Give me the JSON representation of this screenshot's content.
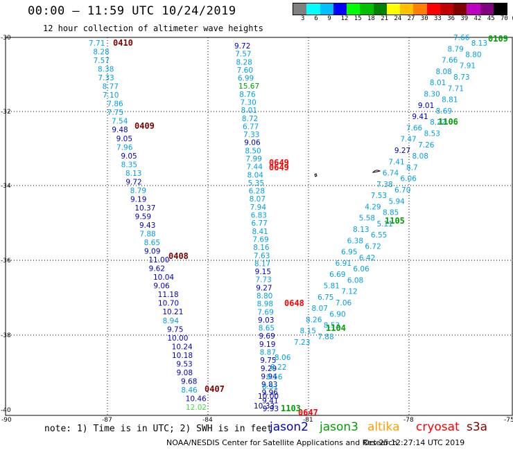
{
  "title": "00:00 – 11:59 UTC 10/24/2019",
  "subtitle": "12 hour collection of altimeter wave heights",
  "color_scale": {
    "labels": [
      "3",
      "6",
      "9",
      "12",
      "15",
      "18",
      "21",
      "24",
      "27",
      "30",
      "33",
      "36",
      "39",
      "42",
      "45",
      "70",
      "(ft)"
    ],
    "colors": [
      "#808080",
      "#00ffff",
      "#00c0ff",
      "#0000ff",
      "#00ff00",
      "#00c000",
      "#008000",
      "#ffff00",
      "#ffc000",
      "#ff8000",
      "#ff0000",
      "#c00000",
      "#800000",
      "#c000c0",
      "#800080",
      "#000000"
    ]
  },
  "axes": {
    "lat_labels": [
      "-30",
      "-32",
      "-34",
      "-36",
      "-38",
      "-40"
    ],
    "lon_labels": [
      "-90",
      "-87",
      "-84",
      "-81",
      "-78",
      "-75"
    ]
  },
  "colors": {
    "lightblue": "#00a0e0",
    "blue": "#0000c0",
    "green": "#00a000",
    "lightgreen": "#40e040",
    "darkred": "#800000",
    "red": "#ff0000"
  },
  "track1": {
    "values": [
      "7.71",
      "8.28",
      "7.57",
      "8.38",
      "7.33",
      "8.77",
      "7.10",
      "7.86",
      "7.75",
      "7.54",
      "9.48",
      "9.05",
      "7.96",
      "9.05",
      "8.35",
      "8.13",
      "9.72",
      "8.79",
      "9.19",
      "10.37",
      "9.59",
      "9.43",
      "7.88",
      "8.65",
      "9.09",
      "11.00",
      "9.62",
      "10.04",
      "9.06",
      "11.18",
      "10.70",
      "10.21",
      "8.94",
      "9.75",
      "10.00",
      "10.24",
      "10.18",
      "9.53",
      "9.08",
      "9.68",
      "8.46",
      "10.46",
      "12.02"
    ],
    "colors": [
      "lb",
      "lb",
      "lb",
      "lb",
      "lb",
      "lb",
      "lb",
      "lb",
      "lb",
      "lb",
      "bl",
      "bl",
      "lb",
      "bl",
      "lb",
      "lb",
      "bl",
      "lb",
      "bl",
      "bl",
      "bl",
      "bl",
      "lb",
      "lb",
      "bl",
      "bl",
      "bl",
      "bl",
      "bl",
      "bl",
      "bl",
      "bl",
      "lb",
      "bl",
      "bl",
      "bl",
      "bl",
      "bl",
      "bl",
      "bl",
      "lb",
      "bl",
      "lg"
    ]
  },
  "track2": {
    "values": [
      "9.72",
      "7.57",
      "8.28",
      "7.60",
      "6.99",
      "15.67",
      "8.76",
      "7.30",
      "8.01",
      "8.72",
      "6.77",
      "7.33",
      "9.06",
      "8.50",
      "7.99",
      "7.44",
      "8.04",
      "5.35",
      "6.28",
      "8.07",
      "7.94",
      "6.83",
      "6.77",
      "8.41",
      "7.69",
      "8.16",
      "7.63",
      "8.17",
      "9.15",
      "7.73",
      "9.27",
      "8.80",
      "8.98",
      "7.69",
      "9.03",
      "8.65",
      "9.69",
      "9.19",
      "8.87",
      "9.75",
      "9.29",
      "9.94",
      "9.83",
      "9.96",
      "9.41",
      "9.93"
    ],
    "colors": [
      "bl",
      "lb",
      "lb",
      "lb",
      "lb",
      "gr",
      "lb",
      "lb",
      "lb",
      "lb",
      "lb",
      "lb",
      "bl",
      "lb",
      "lb",
      "lb",
      "lb",
      "lb",
      "lb",
      "lb",
      "lb",
      "lb",
      "lb",
      "lb",
      "lb",
      "lb",
      "lb",
      "lb",
      "bl",
      "lb",
      "bl",
      "lb",
      "lb",
      "lb",
      "bl",
      "lb",
      "bl",
      "bl",
      "lb",
      "bl",
      "bl",
      "bl",
      "bl",
      "bl",
      "bl",
      "bl"
    ]
  },
  "track2b": {
    "values": [
      "8.06",
      "8.22",
      "9.56",
      "8.51",
      "10.00",
      "10.33"
    ],
    "colors": [
      "lb",
      "lb",
      "lb",
      "lb",
      "bl",
      "bl"
    ]
  },
  "track3": {
    "values": [
      "7.66",
      "8.13",
      "8.79",
      "8.80",
      "7.66",
      "7.91",
      "8.08",
      "8.73",
      "8.01",
      "7.71",
      "8.30",
      "8.81",
      "9.01",
      "8.69",
      "9.41",
      "8.22",
      "7.66",
      "8.53",
      "7.47",
      "7.26",
      "9.27",
      "8.08",
      "7.41",
      "8.7",
      "6.74",
      "6.06",
      "7.38",
      "6.70",
      "7.53",
      "5.94",
      "4.29",
      "8.85",
      "5.58",
      "5.11",
      "8.13",
      "6.55",
      "6.38",
      "6.72",
      "6.95",
      "6.42",
      "6.91",
      "6.06",
      "6.69",
      "6.08",
      "5.81",
      "7.12",
      "6.75",
      "7.06",
      "8.07",
      "6.90",
      "8.26",
      "8.53",
      "8.15",
      "7.88",
      "7.23"
    ],
    "colors": [
      "lb",
      "lb",
      "lb",
      "lb",
      "lb",
      "lb",
      "lb",
      "lb",
      "lb",
      "lb",
      "lb",
      "lb",
      "bl",
      "lb",
      "bl",
      "lb",
      "lb",
      "lb",
      "lb",
      "lb",
      "bl",
      "lb",
      "lb",
      "lb",
      "lb",
      "lb",
      "lb",
      "lb",
      "lb",
      "lb",
      "lb",
      "lb",
      "lb",
      "lb",
      "lb",
      "lb",
      "lb",
      "lb",
      "lb",
      "lb",
      "lb",
      "lb",
      "lb",
      "lb",
      "lb",
      "lb",
      "lb",
      "lb",
      "lb",
      "lb",
      "lb",
      "lb",
      "lb",
      "lb",
      "lb"
    ]
  },
  "time_labels": [
    {
      "text": "0410",
      "c": "dr"
    },
    {
      "text": "0409",
      "c": "dr"
    },
    {
      "text": "0408",
      "c": "dr"
    },
    {
      "text": "0407",
      "c": "dr"
    },
    {
      "text": "0649",
      "c": "rd"
    },
    {
      "text": "0649",
      "c": "rd"
    },
    {
      "text": "0648",
      "c": "rd"
    },
    {
      "text": "0647",
      "c": "rd"
    },
    {
      "text": "0109",
      "c": "gr"
    },
    {
      "text": "1106",
      "c": "gr"
    },
    {
      "text": "1105",
      "c": "gr"
    },
    {
      "text": "1104",
      "c": "gr"
    },
    {
      "text": "1103",
      "c": "gr"
    }
  ],
  "note": "note: 1) Time is in UTC; 2) SWH is in feet",
  "satellites": [
    {
      "name": "jason2",
      "color": "#0000c0"
    },
    {
      "name": "jason3",
      "color": "#00a000"
    },
    {
      "name": "altika",
      "color": "#ffa000"
    },
    {
      "name": "cryosat",
      "color": "#ff0000"
    },
    {
      "name": "s3a",
      "color": "#800000"
    }
  ],
  "footer_center": "NOAA/NESDIS Center for Satellite Applications and Research",
  "footer_right": "Oct 25 12:27:14 UTC 2019"
}
